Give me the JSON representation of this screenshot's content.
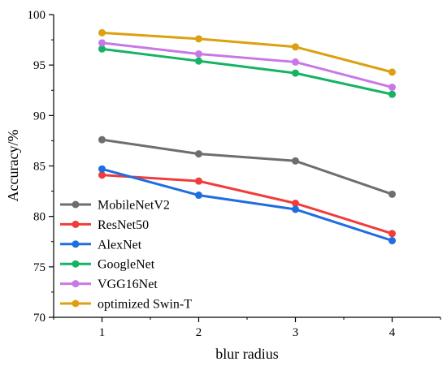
{
  "chart_data": {
    "type": "line",
    "title": "",
    "xlabel": "blur radius",
    "ylabel": "Accuracy/%",
    "x": [
      1,
      2,
      3,
      4
    ],
    "xlim": [
      0.5,
      4.5
    ],
    "ylim": [
      70,
      100
    ],
    "x_ticks": [
      "1",
      "2",
      "3",
      "4"
    ],
    "y_ticks": [
      "70",
      "75",
      "80",
      "85",
      "90",
      "95",
      "100"
    ],
    "grid": false,
    "legend_position": "bottom-left",
    "series": [
      {
        "name": "MobileNetV2",
        "color": "#6e6e6e",
        "values": [
          87.6,
          86.2,
          85.5,
          82.2
        ]
      },
      {
        "name": "ResNet50",
        "color": "#f03c3c",
        "values": [
          84.1,
          83.5,
          81.3,
          78.3
        ]
      },
      {
        "name": "AlexNet",
        "color": "#1e6ee0",
        "values": [
          84.7,
          82.1,
          80.7,
          77.6
        ]
      },
      {
        "name": "GoogleNet",
        "color": "#14b464",
        "values": [
          96.6,
          95.4,
          94.2,
          92.1
        ]
      },
      {
        "name": "VGG16Net",
        "color": "#c878e6",
        "values": [
          97.2,
          96.1,
          95.3,
          92.8
        ]
      },
      {
        "name": "optimized Swin-T",
        "color": "#dca010",
        "values": [
          98.2,
          97.6,
          96.8,
          94.3
        ]
      }
    ]
  }
}
